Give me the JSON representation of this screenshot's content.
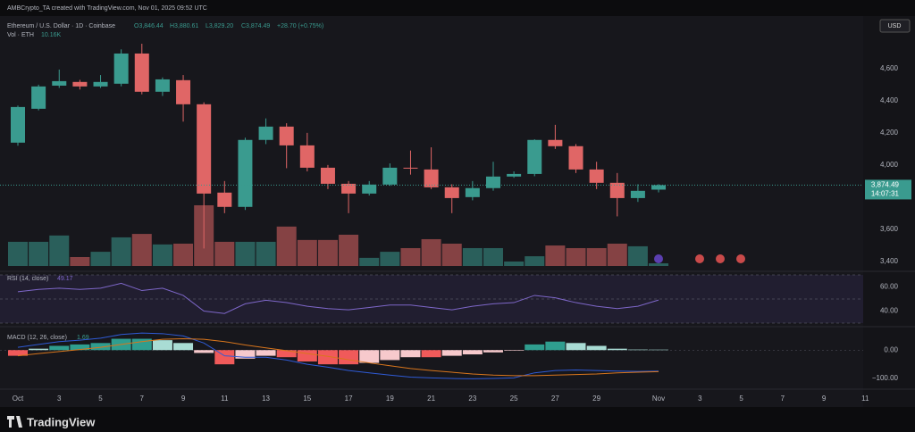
{
  "header": {
    "credit": "AMBCrypto_TA created with TradingView.com, Nov 01, 2025 09:52 UTC",
    "symbol": "Ethereum / U.S. Dollar · 1D · Coinbase",
    "ohlc": [
      "O3,846.44",
      "H3,880.61",
      "L3,829.20",
      "C3,874.49",
      "+28.70 (+0.75%)"
    ],
    "currency": "USD",
    "countdown": "14:07:31",
    "last_price": {
      "value": 3874.49,
      "label": "3,874.49"
    }
  },
  "footer": {
    "brand": "TradingView"
  },
  "chart_data": [
    {
      "type": "candlestick",
      "up_color": "#3a9b8f",
      "down_color": "#e06666",
      "categories": [
        "Oct",
        null,
        "3",
        null,
        "5",
        null,
        "7",
        null,
        "9",
        null,
        "11",
        null,
        "13",
        null,
        "15",
        null,
        "17",
        null,
        "19",
        null,
        "21",
        null,
        "23",
        null,
        "25",
        null,
        "27",
        null,
        "29",
        null,
        null,
        "Nov",
        null,
        "3",
        null,
        "5",
        null,
        "7",
        null,
        "9",
        null,
        "11"
      ],
      "open": [
        4139,
        4350,
        4494,
        4517,
        4489,
        4506,
        4694,
        4456,
        4528,
        4378,
        3828,
        3739,
        4156,
        4239,
        4122,
        3983,
        3883,
        3822,
        3878,
        3983,
        3972,
        3861,
        3800,
        3856,
        3928,
        3944,
        4156,
        4117,
        3972,
        3889,
        3794,
        3846.44,
        null,
        null,
        null,
        null,
        null,
        null,
        null,
        null,
        null,
        null
      ],
      "high": [
        4370,
        4500,
        4594,
        4530,
        4560,
        4720,
        4755,
        4545,
        4560,
        4390,
        3900,
        4170,
        4290,
        4260,
        4200,
        4000,
        3900,
        3900,
        4010,
        4090,
        4110,
        3880,
        3900,
        4020,
        3960,
        4160,
        4250,
        4130,
        4020,
        3950,
        3880,
        3880.61,
        null,
        null,
        null,
        null,
        null,
        null,
        null,
        null,
        null,
        null
      ],
      "low": [
        4120,
        4340,
        4480,
        4470,
        4480,
        4490,
        4440,
        4430,
        4270,
        3480,
        3700,
        3720,
        4130,
        3980,
        3960,
        3850,
        3700,
        3810,
        3870,
        3940,
        3850,
        3700,
        3780,
        3840,
        3920,
        3930,
        4100,
        3950,
        3850,
        3680,
        3770,
        3829.2,
        null,
        null,
        null,
        null,
        null,
        null,
        null,
        null,
        null,
        null
      ],
      "close": [
        4361,
        4489,
        4522,
        4489,
        4517,
        4694,
        4456,
        4533,
        4378,
        3822,
        3739,
        4156,
        4239,
        4122,
        3983,
        3883,
        3822,
        3878,
        3983,
        3978,
        3861,
        3794,
        3856,
        3928,
        3944,
        4156,
        4117,
        3972,
        3889,
        3794,
        3839,
        3874.49,
        null,
        null,
        null,
        null,
        null,
        null,
        null,
        null,
        null,
        null
      ],
      "ylim": [
        3360,
        4905
      ],
      "yticks": [
        {
          "value": 3400,
          "label": "3,400"
        },
        {
          "value": 3600,
          "label": "3,600"
        },
        {
          "value": 4000,
          "label": "4,000"
        },
        {
          "value": 4200,
          "label": "4,200"
        },
        {
          "value": 4400,
          "label": "4,400"
        },
        {
          "value": 4600,
          "label": "4,600"
        }
      ],
      "grid": false,
      "volume": {
        "name": "Vol · ETH",
        "last_label": "10.16K",
        "values": [
          92,
          92,
          116,
          34,
          54,
          109,
          122,
          82,
          85,
          231,
          92,
          92,
          92,
          150,
          99,
          99,
          119,
          31,
          54,
          68,
          102,
          85,
          68,
          68,
          17,
          37,
          78,
          68,
          68,
          85,
          75,
          10.16,
          null,
          null,
          null,
          null,
          null,
          null,
          null,
          null,
          null,
          null
        ]
      }
    },
    {
      "type": "line",
      "title": "RSI (14, close)",
      "color": "#7e67c9",
      "values": [
        56,
        58,
        59,
        58,
        59,
        63,
        57,
        59,
        53,
        40,
        38,
        46,
        49,
        47,
        44,
        42,
        41,
        43,
        45,
        45,
        43,
        41,
        44,
        46,
        47,
        53,
        51,
        47,
        44,
        42,
        44,
        49.17,
        null,
        null,
        null,
        null,
        null,
        null,
        null,
        null,
        null,
        null
      ],
      "ylim": [
        30,
        70
      ],
      "levels": [
        70,
        50,
        30
      ],
      "yticks": [
        {
          "value": 40,
          "label": "40.00"
        },
        {
          "value": 60,
          "label": "60.00"
        }
      ]
    },
    {
      "type": "macd",
      "title": "MACD (12, 26, close)",
      "series": [
        {
          "name": "Histogram",
          "values": [
            -20,
            5,
            15,
            20,
            25,
            40,
            40,
            35,
            25,
            -10,
            -50,
            -30,
            -20,
            -25,
            -40,
            -50,
            -50,
            -45,
            -35,
            -25,
            -25,
            -20,
            -15,
            -8,
            -2,
            20,
            30,
            25,
            15,
            5,
            2,
            1.69,
            null,
            null,
            null,
            null,
            null,
            null,
            null,
            null,
            null,
            null
          ]
        },
        {
          "name": "MACD",
          "color": "#2f5bd6",
          "values": [
            10,
            20,
            30,
            35,
            42,
            55,
            60,
            58,
            50,
            25,
            -20,
            -25,
            -25,
            -35,
            -50,
            -60,
            -72,
            -80,
            -88,
            -95,
            -98,
            -100,
            -101,
            -100,
            -98,
            -80,
            -72,
            -70,
            -72,
            -74,
            -75,
            -74,
            null,
            null,
            null,
            null,
            null,
            null,
            null,
            null,
            null,
            null
          ]
        },
        {
          "name": "Signal",
          "color": "#d9761c",
          "values": [
            -20,
            -12,
            -5,
            2,
            10,
            20,
            30,
            38,
            40,
            38,
            30,
            18,
            8,
            -2,
            -12,
            -22,
            -34,
            -45,
            -55,
            -65,
            -72,
            -78,
            -84,
            -88,
            -90,
            -90,
            -88,
            -86,
            -84,
            -80,
            -78,
            -76,
            null,
            null,
            null,
            null,
            null,
            null,
            null,
            null,
            null,
            null
          ]
        }
      ],
      "ylim": [
        -125,
        70
      ],
      "yticks": [
        {
          "value": 0,
          "label": "0.00"
        },
        {
          "value": -100,
          "label": "−100.00"
        }
      ]
    }
  ]
}
